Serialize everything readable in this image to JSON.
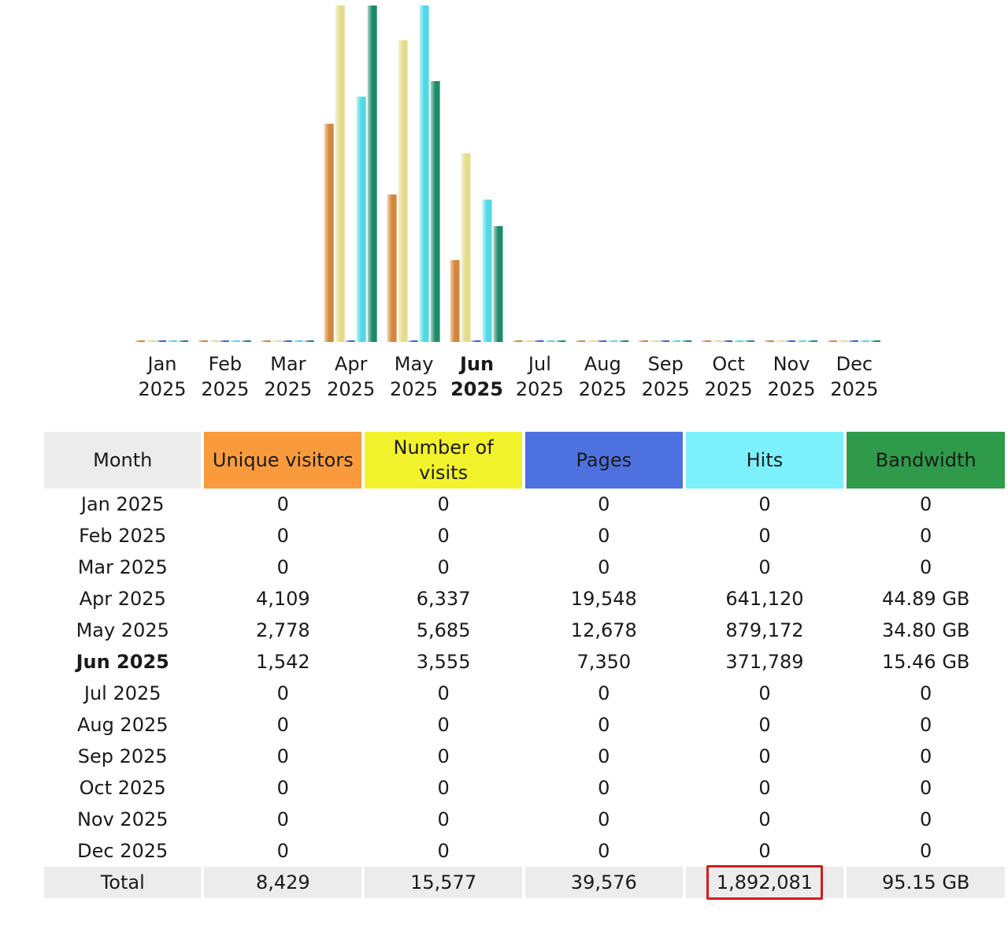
{
  "chart_data": {
    "type": "bar",
    "categories": [
      "Jan 2025",
      "Feb 2025",
      "Mar 2025",
      "Apr 2025",
      "May 2025",
      "Jun 2025",
      "Jul 2025",
      "Aug 2025",
      "Sep 2025",
      "Oct 2025",
      "Nov 2025",
      "Dec 2025"
    ],
    "category_month": [
      "Jan",
      "Feb",
      "Mar",
      "Apr",
      "May",
      "Jun",
      "Jul",
      "Aug",
      "Sep",
      "Oct",
      "Nov",
      "Dec"
    ],
    "category_year": [
      "2025",
      "2025",
      "2025",
      "2025",
      "2025",
      "2025",
      "2025",
      "2025",
      "2025",
      "2025",
      "2025",
      "2025"
    ],
    "current_index": 5,
    "series": [
      {
        "key": "unique_visitors",
        "color": "#d4863a",
        "values": [
          0,
          0,
          0,
          4109,
          2778,
          1542,
          0,
          0,
          0,
          0,
          0,
          0
        ]
      },
      {
        "key": "visits",
        "color": "#e4dc8c",
        "values": [
          0,
          0,
          0,
          6337,
          5685,
          3555,
          0,
          0,
          0,
          0,
          0,
          0
        ]
      },
      {
        "key": "pages",
        "color": "#3f5fd6",
        "values": [
          0,
          0,
          0,
          19548,
          12678,
          7350,
          0,
          0,
          0,
          0,
          0,
          0
        ]
      },
      {
        "key": "hits",
        "color": "#4fd9e6",
        "values": [
          0,
          0,
          0,
          641120,
          879172,
          371789,
          0,
          0,
          0,
          0,
          0,
          0
        ]
      },
      {
        "key": "bandwidth_gb",
        "color": "#1e8a6a",
        "values": [
          0,
          0,
          0,
          44.89,
          34.8,
          15.46,
          0,
          0,
          0,
          0,
          0,
          0
        ]
      }
    ]
  },
  "table": {
    "headers": {
      "month": "Month",
      "unique_visitors": "Unique visitors",
      "visits": "Number of visits",
      "pages": "Pages",
      "hits": "Hits",
      "bandwidth": "Bandwidth"
    },
    "rows": [
      {
        "month": "Jan 2025",
        "uv": "0",
        "visits": "0",
        "pages": "0",
        "hits": "0",
        "bw": "0"
      },
      {
        "month": "Feb 2025",
        "uv": "0",
        "visits": "0",
        "pages": "0",
        "hits": "0",
        "bw": "0"
      },
      {
        "month": "Mar 2025",
        "uv": "0",
        "visits": "0",
        "pages": "0",
        "hits": "0",
        "bw": "0"
      },
      {
        "month": "Apr 2025",
        "uv": "4,109",
        "visits": "6,337",
        "pages": "19,548",
        "hits": "641,120",
        "bw": "44.89 GB"
      },
      {
        "month": "May 2025",
        "uv": "2,778",
        "visits": "5,685",
        "pages": "12,678",
        "hits": "879,172",
        "bw": "34.80 GB"
      },
      {
        "month": "Jun 2025",
        "uv": "1,542",
        "visits": "3,555",
        "pages": "7,350",
        "hits": "371,789",
        "bw": "15.46 GB"
      },
      {
        "month": "Jul 2025",
        "uv": "0",
        "visits": "0",
        "pages": "0",
        "hits": "0",
        "bw": "0"
      },
      {
        "month": "Aug 2025",
        "uv": "0",
        "visits": "0",
        "pages": "0",
        "hits": "0",
        "bw": "0"
      },
      {
        "month": "Sep 2025",
        "uv": "0",
        "visits": "0",
        "pages": "0",
        "hits": "0",
        "bw": "0"
      },
      {
        "month": "Oct 2025",
        "uv": "0",
        "visits": "0",
        "pages": "0",
        "hits": "0",
        "bw": "0"
      },
      {
        "month": "Nov 2025",
        "uv": "0",
        "visits": "0",
        "pages": "0",
        "hits": "0",
        "bw": "0"
      },
      {
        "month": "Dec 2025",
        "uv": "0",
        "visits": "0",
        "pages": "0",
        "hits": "0",
        "bw": "0"
      }
    ],
    "total": {
      "label": "Total",
      "uv": "8,429",
      "visits": "15,577",
      "pages": "39,576",
      "hits": "1,892,081",
      "bw": "95.15 GB"
    }
  }
}
